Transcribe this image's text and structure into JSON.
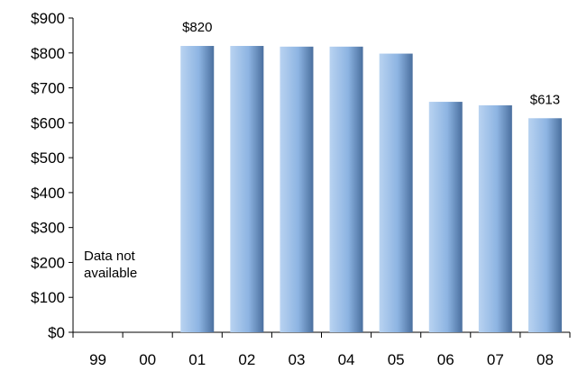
{
  "chart_data": {
    "type": "bar",
    "categories": [
      "99",
      "00",
      "01",
      "02",
      "03",
      "04",
      "05",
      "06",
      "07",
      "08"
    ],
    "values": [
      null,
      null,
      820,
      820,
      818,
      818,
      798,
      660,
      650,
      613
    ],
    "ylim": [
      0,
      900
    ],
    "yticks": [
      "$0",
      "$100",
      "$200",
      "$300",
      "$400",
      "$500",
      "$600",
      "$700",
      "$800",
      "$900"
    ],
    "grid": false,
    "data_labels": [
      {
        "category": "01",
        "text": "$820"
      },
      {
        "category": "08",
        "text": "$613"
      }
    ],
    "annotation": {
      "line1": "Data not",
      "line2": "available"
    },
    "bar_color": "#8db4e2"
  }
}
